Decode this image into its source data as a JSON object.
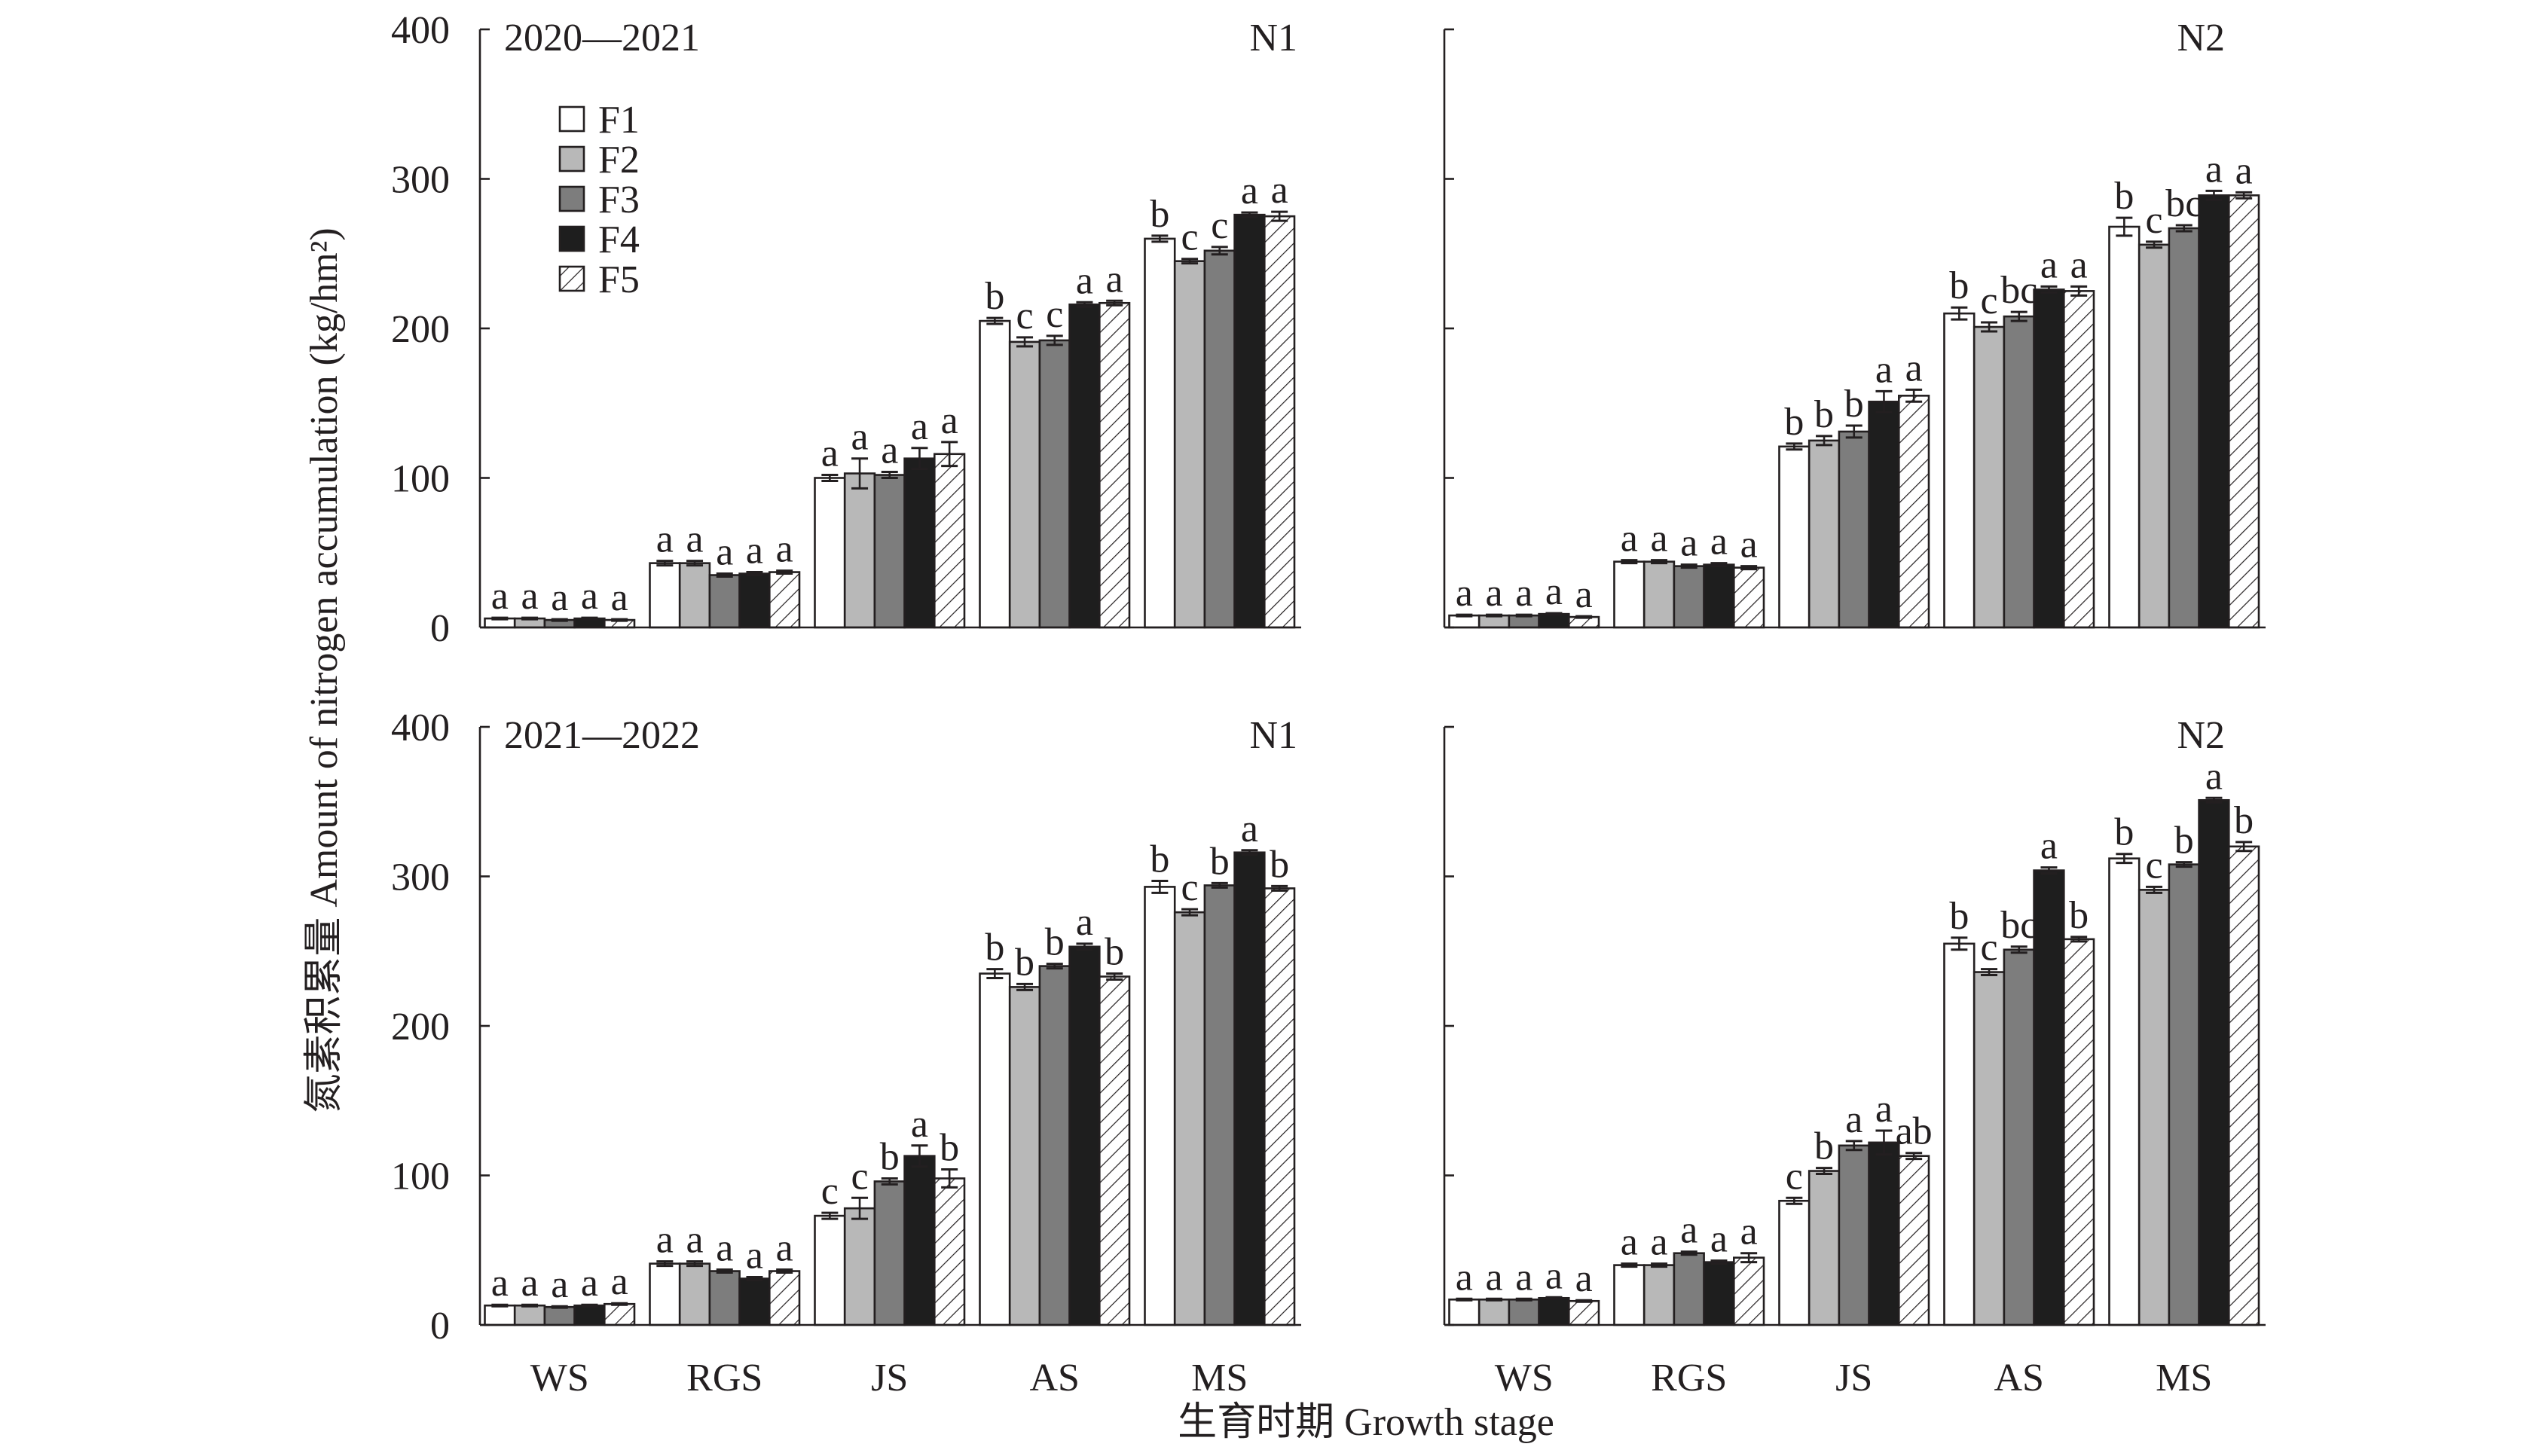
{
  "chart_data": {
    "type": "bar",
    "ylabel": "氮素积累量 Amount of nitrogen accumulation (kg/hm²)",
    "xlabel": "生育时期 Growth stage",
    "categories": [
      "WS",
      "RGS",
      "JS",
      "AS",
      "MS"
    ],
    "ylim": [
      0,
      400
    ],
    "yticks": [
      0,
      100,
      200,
      300,
      400
    ],
    "grid": false,
    "legend": {
      "position": "top-left",
      "entries": [
        {
          "name": "F1",
          "fill": "#ffffff"
        },
        {
          "name": "F2",
          "fill": "#b8b8b8"
        },
        {
          "name": "F3",
          "fill": "#7d7d7d"
        },
        {
          "name": "F4",
          "fill": "#1e1e1e"
        },
        {
          "name": "F5",
          "fill": "#ffffff",
          "pattern": "diagonal-hatch"
        }
      ]
    },
    "panels": [
      {
        "period": "2020—2021",
        "label": "N1",
        "series": [
          {
            "values": [
              6,
              43,
              100,
              205,
              260
            ],
            "errors": [
              0.5,
              1.5,
              2,
              2,
              2
            ],
            "letters": [
              "a",
              "a",
              "a",
              "b",
              "b"
            ]
          },
          {
            "values": [
              6,
              43,
              103,
              191,
              245
            ],
            "errors": [
              0.5,
              1.5,
              10,
              3,
              1.5
            ],
            "letters": [
              "a",
              "a",
              "a",
              "c",
              "c"
            ]
          },
          {
            "values": [
              5,
              35,
              102,
              192,
              252
            ],
            "errors": [
              0.5,
              1,
              2,
              3,
              2.5
            ],
            "letters": [
              "a",
              "a",
              "a",
              "c",
              "c"
            ]
          },
          {
            "values": [
              6,
              36,
              113,
              216,
              276
            ],
            "errors": [
              0.5,
              1,
              7,
              1.5,
              1.5
            ],
            "letters": [
              "a",
              "a",
              "a",
              "a",
              "a"
            ]
          },
          {
            "values": [
              5,
              37,
              116,
              217,
              275
            ],
            "errors": [
              0.5,
              1,
              8,
              1.5,
              3
            ],
            "letters": [
              "a",
              "a",
              "a",
              "a",
              "a"
            ]
          }
        ]
      },
      {
        "label": "N2",
        "series": [
          {
            "values": [
              8,
              44,
              121,
              210,
              268
            ],
            "errors": [
              0.5,
              1,
              2,
              4,
              6
            ],
            "letters": [
              "a",
              "a",
              "b",
              "b",
              "b"
            ]
          },
          {
            "values": [
              8,
              44,
              125,
              201,
              256
            ],
            "errors": [
              0.5,
              1,
              3,
              3,
              2
            ],
            "letters": [
              "a",
              "a",
              "b",
              "c",
              "c"
            ]
          },
          {
            "values": [
              8,
              41,
              131,
              208,
              267
            ],
            "errors": [
              0.5,
              1,
              4,
              3,
              2
            ],
            "letters": [
              "a",
              "a",
              "b",
              "bc",
              "bc"
            ]
          },
          {
            "values": [
              9,
              42,
              151,
              226,
              289
            ],
            "errors": [
              0.5,
              1,
              7,
              2,
              3
            ],
            "letters": [
              "a",
              "a",
              "a",
              "a",
              "a"
            ]
          },
          {
            "values": [
              7,
              40,
              155,
              225,
              289
            ],
            "errors": [
              0.5,
              1,
              4,
              3,
              2
            ],
            "letters": [
              "a",
              "a",
              "a",
              "a",
              "a"
            ]
          }
        ]
      },
      {
        "period": "2021—2022",
        "label": "N1",
        "series": [
          {
            "values": [
              13,
              41,
              73,
              235,
              293
            ],
            "errors": [
              0.5,
              1.5,
              2,
              3,
              4
            ],
            "letters": [
              "a",
              "a",
              "c",
              "b",
              "b"
            ]
          },
          {
            "values": [
              13,
              41,
              78,
              226,
              276
            ],
            "errors": [
              0.5,
              1.5,
              7,
              2,
              2
            ],
            "letters": [
              "a",
              "a",
              "c",
              "b",
              "c"
            ]
          },
          {
            "values": [
              12,
              36,
              96,
              240,
              294
            ],
            "errors": [
              0.5,
              1,
              2,
              1.5,
              1.5
            ],
            "letters": [
              "a",
              "a",
              "b",
              "b",
              "b"
            ]
          },
          {
            "values": [
              13,
              31,
              113,
              253,
              316
            ],
            "errors": [
              0.5,
              1,
              7,
              2,
              1.5
            ],
            "letters": [
              "a",
              "a",
              "a",
              "a",
              "a"
            ]
          },
          {
            "values": [
              14,
              36,
              98,
              233,
              292
            ],
            "errors": [
              0.5,
              1,
              6,
              2,
              1.5
            ],
            "letters": [
              "a",
              "a",
              "b",
              "b",
              "b"
            ]
          }
        ]
      },
      {
        "label": "N2",
        "series": [
          {
            "values": [
              17,
              40,
              83,
              255,
              312
            ],
            "errors": [
              0.5,
              1,
              2,
              4,
              3
            ],
            "letters": [
              "a",
              "a",
              "c",
              "b",
              "b"
            ]
          },
          {
            "values": [
              17,
              40,
              103,
              236,
              291
            ],
            "errors": [
              0.5,
              1,
              2,
              2,
              2
            ],
            "letters": [
              "a",
              "a",
              "b",
              "c",
              "c"
            ]
          },
          {
            "values": [
              17,
              48,
              120,
              251,
              308
            ],
            "errors": [
              0.5,
              1,
              3,
              2,
              1.5
            ],
            "letters": [
              "a",
              "a",
              "a",
              "bc",
              "b"
            ]
          },
          {
            "values": [
              18,
              42,
              122,
              304,
              351
            ],
            "errors": [
              0.5,
              1,
              8,
              2,
              1.5
            ],
            "letters": [
              "a",
              "a",
              "a",
              "a",
              "a"
            ]
          },
          {
            "values": [
              16,
              45,
              113,
              258,
              320
            ],
            "errors": [
              0.5,
              3,
              2,
              1.5,
              3
            ],
            "letters": [
              "a",
              "a",
              "ab",
              "b",
              "b"
            ]
          }
        ]
      }
    ]
  }
}
